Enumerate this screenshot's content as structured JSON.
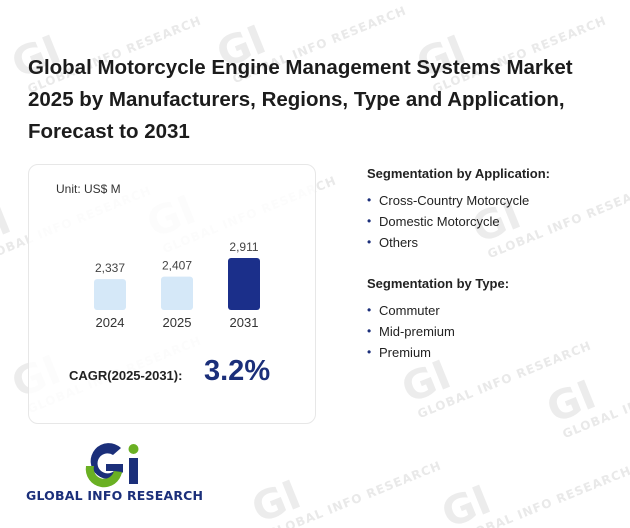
{
  "title": "Global Motorcycle Engine Management Systems Market 2025 by Manufacturers, Regions, Type and Application, Forecast to 2031",
  "chart_data": {
    "type": "bar",
    "unit_label": "Unit: US$ M",
    "categories": [
      "2024",
      "2025",
      "2031"
    ],
    "values": [
      2337,
      2407,
      2911
    ],
    "value_labels": [
      "2,337",
      "2,407",
      "2,911"
    ],
    "bar_colors": [
      "#d5e8f8",
      "#d5e8f8",
      "#1b2f8a"
    ],
    "cagr_label": "CAGR(2025-2031):",
    "cagr_value": "3.2%"
  },
  "segmentation_application": {
    "title": "Segmentation by Application:",
    "items": [
      "Cross-Country Motorcycle",
      "Domestic Motorcycle",
      "Others"
    ]
  },
  "segmentation_type": {
    "title": "Segmentation by Type:",
    "items": [
      "Commuter",
      "Mid-premium",
      "Premium"
    ]
  },
  "logo": {
    "text": "GLOBAL INFO RESEARCH",
    "colors": {
      "navy": "#1b2f7a",
      "green": "#6ab023"
    }
  },
  "watermark": {
    "text": "GLOBAL INFO RESEARCH"
  }
}
